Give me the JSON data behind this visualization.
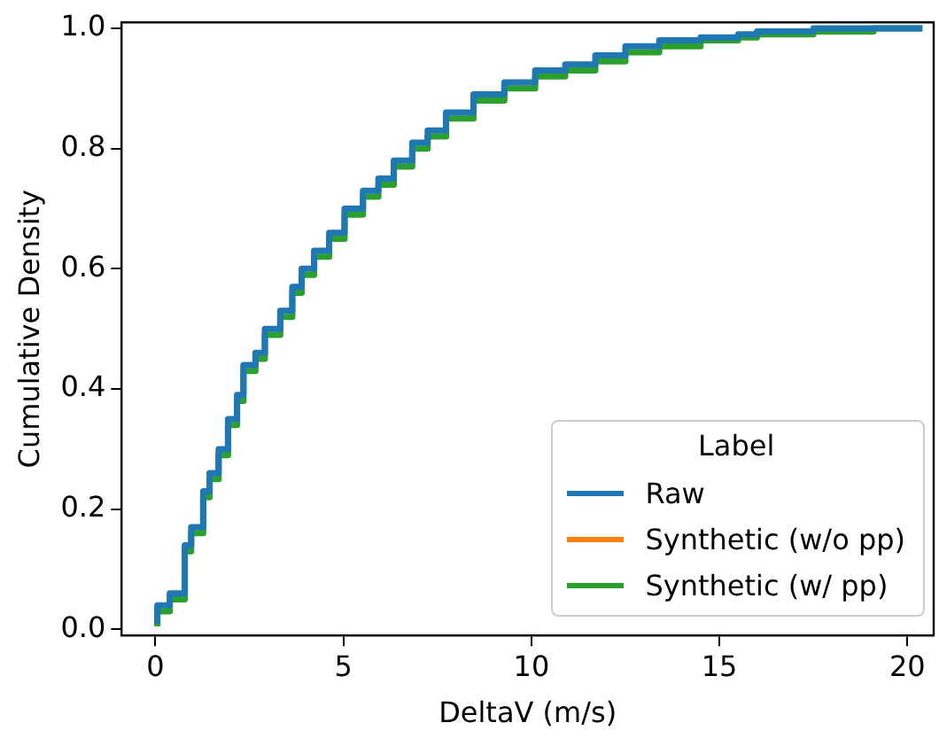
{
  "chart_data": {
    "type": "step",
    "xlabel": "DeltaV (m/s)",
    "ylabel": "Cumulative Density",
    "legend_title": "Label",
    "legend": "bottom right",
    "grid": false,
    "x": [
      0.05,
      0.38,
      0.78,
      0.78,
      0.95,
      1.27,
      1.44,
      1.68,
      1.93,
      2.17,
      2.34,
      2.66,
      2.91,
      3.32,
      3.64,
      3.89,
      4.22,
      4.62,
      5.03,
      5.52,
      5.93,
      6.34,
      6.83,
      7.24,
      7.73,
      8.46,
      9.28,
      10.1,
      10.9,
      11.7,
      12.5,
      13.4,
      14.5,
      15.5,
      16.0,
      17.5,
      19.1,
      20.4
    ],
    "series": [
      {
        "name": "Raw",
        "color": "#1f77b4",
        "values": [
          0.01,
          0.04,
          0.06,
          0.12,
          0.14,
          0.17,
          0.23,
          0.26,
          0.3,
          0.35,
          0.39,
          0.44,
          0.46,
          0.5,
          0.53,
          0.57,
          0.6,
          0.63,
          0.66,
          0.7,
          0.73,
          0.75,
          0.78,
          0.81,
          0.83,
          0.86,
          0.89,
          0.91,
          0.93,
          0.94,
          0.955,
          0.97,
          0.98,
          0.985,
          0.99,
          0.995,
          1.0,
          1.0
        ]
      },
      {
        "name": "Synthetic (w/o pp)",
        "color": "#ff7f0e",
        "values": [
          null,
          null,
          null,
          null,
          null,
          null,
          null,
          null,
          null,
          null,
          null,
          null,
          null,
          null,
          null,
          null,
          null,
          null,
          null,
          null,
          null,
          null,
          null,
          null,
          null,
          null,
          null,
          null,
          null,
          null,
          null,
          null,
          null,
          null,
          null,
          null,
          null,
          null
        ]
      },
      {
        "name": "Synthetic (w/ pp)",
        "color": "#2ca02c",
        "values": [
          0.005,
          0.03,
          0.05,
          0.11,
          0.13,
          0.16,
          0.22,
          0.25,
          0.29,
          0.34,
          0.38,
          0.43,
          0.45,
          0.49,
          0.52,
          0.56,
          0.59,
          0.62,
          0.65,
          0.69,
          0.72,
          0.74,
          0.77,
          0.8,
          0.82,
          0.85,
          0.88,
          0.9,
          0.92,
          0.93,
          0.945,
          0.96,
          0.97,
          0.98,
          0.985,
          0.99,
          0.995,
          1.0
        ]
      }
    ],
    "xlim": [
      -0.9,
      20.7
    ],
    "xticks": [
      0,
      5,
      10,
      15,
      20
    ],
    "ylim": [
      -0.01,
      1.01
    ],
    "yticks": [
      {
        "value": 0,
        "label": "0.0"
      },
      {
        "value": 0.2,
        "label": "0.2"
      },
      {
        "value": 0.4,
        "label": "0.4"
      },
      {
        "value": 0.6,
        "label": "0.6"
      },
      {
        "value": 0.8,
        "label": "0.8"
      },
      {
        "value": 1,
        "label": "1.0"
      }
    ]
  }
}
